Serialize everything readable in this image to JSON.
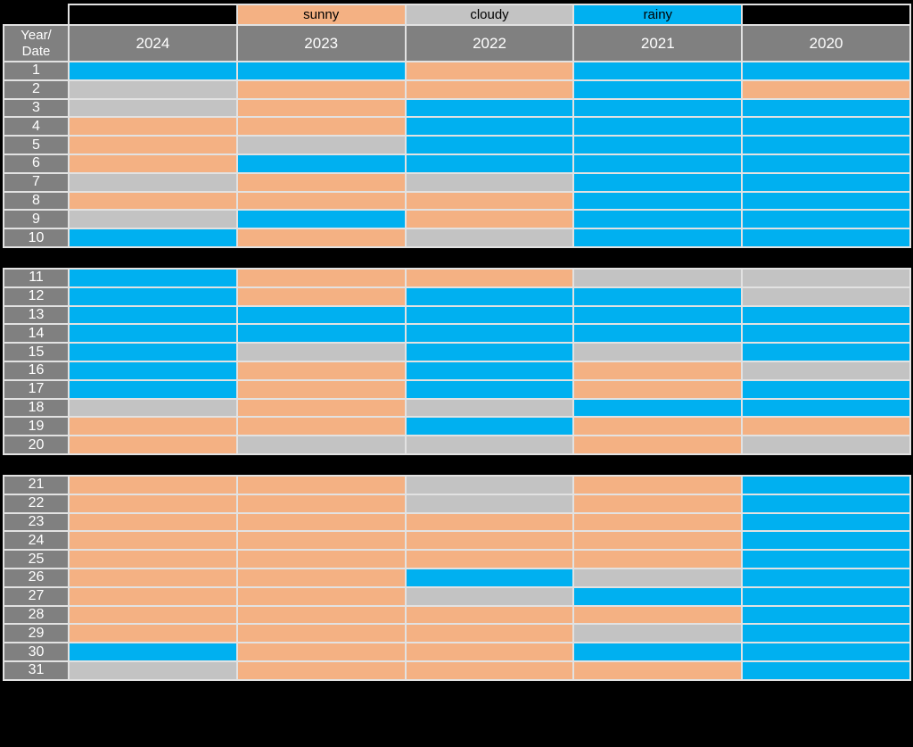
{
  "colors": {
    "background": "#000000",
    "header_bg": "#808080",
    "header_text": "#FFFFFF",
    "legend_text": "#000000",
    "grid_border": "#E2E2E2",
    "sunny": "#F4B183",
    "cloudy": "#C3C3C3",
    "rainy": "#00B0F0"
  },
  "legend": {
    "sunny": "sunny",
    "cloudy": "cloudy",
    "rainy": "rainy"
  },
  "header": {
    "corner_top": "Year/",
    "corner_bottom": "Date",
    "years": [
      "2024",
      "2023",
      "2022",
      "2021",
      "2020"
    ]
  },
  "chart_data": {
    "type": "heatmap",
    "x_categories": [
      "2024",
      "2023",
      "2022",
      "2021",
      "2020"
    ],
    "y_categories": [
      "1",
      "2",
      "3",
      "4",
      "5",
      "6",
      "7",
      "8",
      "9",
      "10",
      "11",
      "12",
      "13",
      "14",
      "15",
      "16",
      "17",
      "18",
      "19",
      "20",
      "21",
      "22",
      "23",
      "24",
      "25",
      "26",
      "27",
      "28",
      "29",
      "30",
      "31"
    ],
    "legend_entries": [
      "sunny",
      "cloudy",
      "rainy"
    ],
    "legend_position": "top",
    "sections": [
      {
        "start": 1,
        "end": 10
      },
      {
        "start": 11,
        "end": 20
      },
      {
        "start": 21,
        "end": 31
      }
    ],
    "rows": [
      {
        "date": "1",
        "values": [
          "rainy",
          "rainy",
          "sunny",
          "rainy",
          "rainy"
        ]
      },
      {
        "date": "2",
        "values": [
          "cloudy",
          "sunny",
          "sunny",
          "rainy",
          "sunny"
        ]
      },
      {
        "date": "3",
        "values": [
          "cloudy",
          "sunny",
          "rainy",
          "rainy",
          "rainy"
        ]
      },
      {
        "date": "4",
        "values": [
          "sunny",
          "sunny",
          "rainy",
          "rainy",
          "rainy"
        ]
      },
      {
        "date": "5",
        "values": [
          "sunny",
          "cloudy",
          "rainy",
          "rainy",
          "rainy"
        ]
      },
      {
        "date": "6",
        "values": [
          "sunny",
          "rainy",
          "rainy",
          "rainy",
          "rainy"
        ]
      },
      {
        "date": "7",
        "values": [
          "cloudy",
          "sunny",
          "cloudy",
          "rainy",
          "rainy"
        ]
      },
      {
        "date": "8",
        "values": [
          "sunny",
          "sunny",
          "sunny",
          "rainy",
          "rainy"
        ]
      },
      {
        "date": "9",
        "values": [
          "cloudy",
          "rainy",
          "sunny",
          "rainy",
          "rainy"
        ]
      },
      {
        "date": "10",
        "values": [
          "rainy",
          "sunny",
          "cloudy",
          "rainy",
          "rainy"
        ]
      },
      {
        "date": "11",
        "values": [
          "rainy",
          "sunny",
          "sunny",
          "cloudy",
          "cloudy"
        ]
      },
      {
        "date": "12",
        "values": [
          "rainy",
          "sunny",
          "rainy",
          "rainy",
          "cloudy"
        ]
      },
      {
        "date": "13",
        "values": [
          "rainy",
          "rainy",
          "rainy",
          "rainy",
          "rainy"
        ]
      },
      {
        "date": "14",
        "values": [
          "rainy",
          "rainy",
          "rainy",
          "rainy",
          "rainy"
        ]
      },
      {
        "date": "15",
        "values": [
          "rainy",
          "cloudy",
          "rainy",
          "cloudy",
          "rainy"
        ]
      },
      {
        "date": "16",
        "values": [
          "rainy",
          "sunny",
          "rainy",
          "sunny",
          "cloudy"
        ]
      },
      {
        "date": "17",
        "values": [
          "rainy",
          "sunny",
          "rainy",
          "sunny",
          "rainy"
        ]
      },
      {
        "date": "18",
        "values": [
          "cloudy",
          "sunny",
          "cloudy",
          "rainy",
          "rainy"
        ]
      },
      {
        "date": "19",
        "values": [
          "sunny",
          "sunny",
          "rainy",
          "sunny",
          "sunny"
        ]
      },
      {
        "date": "20",
        "values": [
          "sunny",
          "cloudy",
          "cloudy",
          "sunny",
          "cloudy"
        ]
      },
      {
        "date": "21",
        "values": [
          "sunny",
          "sunny",
          "cloudy",
          "sunny",
          "rainy"
        ]
      },
      {
        "date": "22",
        "values": [
          "sunny",
          "sunny",
          "cloudy",
          "sunny",
          "rainy"
        ]
      },
      {
        "date": "23",
        "values": [
          "sunny",
          "sunny",
          "sunny",
          "sunny",
          "rainy"
        ]
      },
      {
        "date": "24",
        "values": [
          "sunny",
          "sunny",
          "sunny",
          "sunny",
          "rainy"
        ]
      },
      {
        "date": "25",
        "values": [
          "sunny",
          "sunny",
          "sunny",
          "sunny",
          "rainy"
        ]
      },
      {
        "date": "26",
        "values": [
          "sunny",
          "sunny",
          "rainy",
          "cloudy",
          "rainy"
        ]
      },
      {
        "date": "27",
        "values": [
          "sunny",
          "sunny",
          "cloudy",
          "rainy",
          "rainy"
        ]
      },
      {
        "date": "28",
        "values": [
          "sunny",
          "sunny",
          "sunny",
          "sunny",
          "rainy"
        ]
      },
      {
        "date": "29",
        "values": [
          "sunny",
          "sunny",
          "sunny",
          "cloudy",
          "rainy"
        ]
      },
      {
        "date": "30",
        "values": [
          "rainy",
          "sunny",
          "sunny",
          "rainy",
          "rainy"
        ]
      },
      {
        "date": "31",
        "values": [
          "cloudy",
          "sunny",
          "sunny",
          "sunny",
          "rainy"
        ]
      }
    ]
  }
}
